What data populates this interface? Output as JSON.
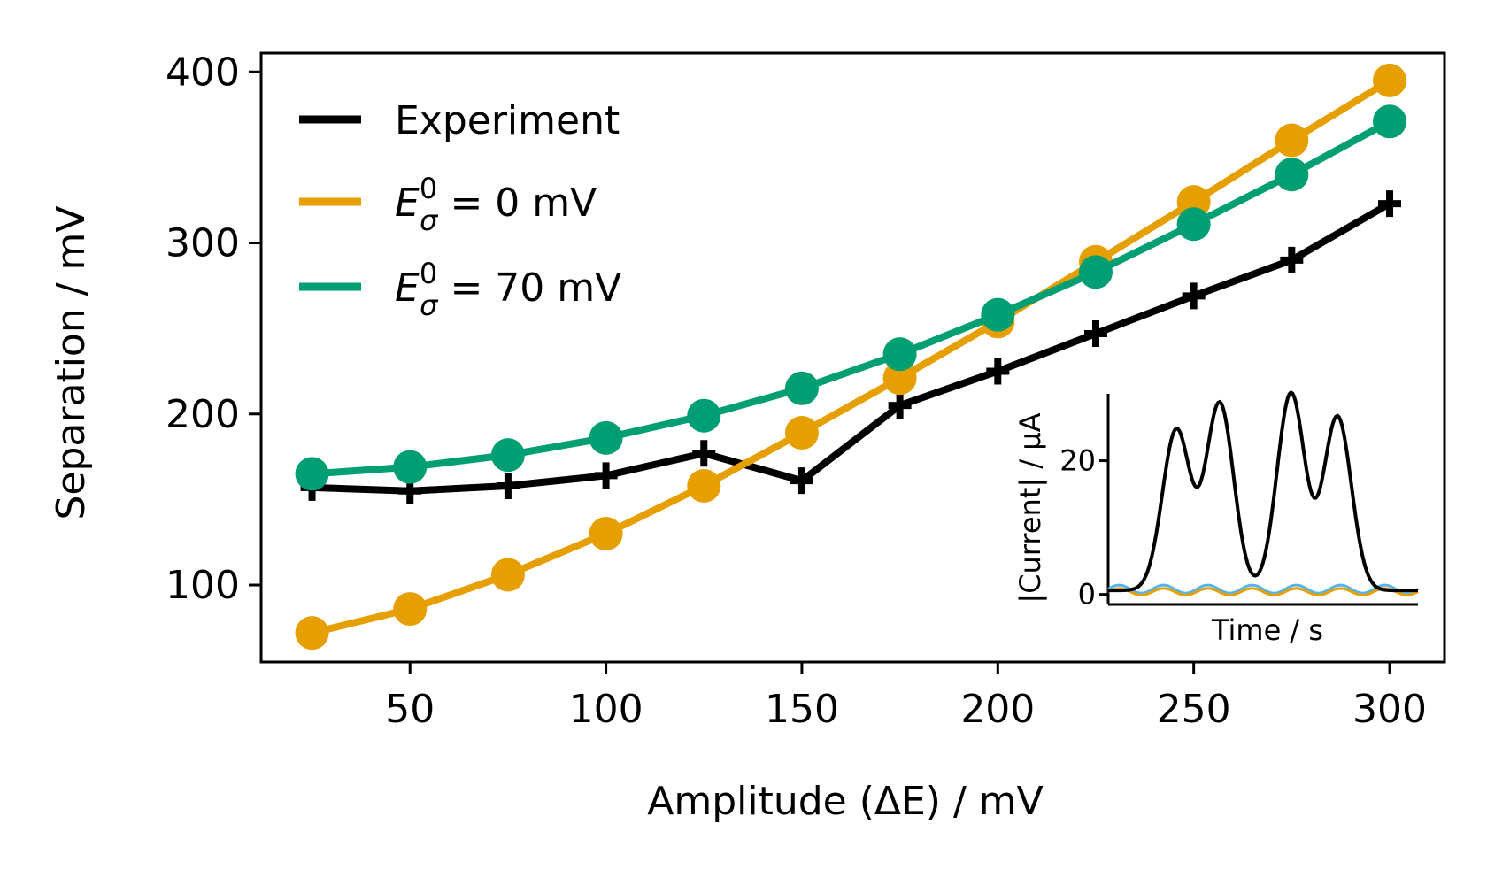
{
  "chart_data": {
    "type": "line",
    "xlabel": "Amplitude (ΔE) / mV",
    "ylabel": "Separation / mV",
    "xlim": [
      12,
      314
    ],
    "ylim": [
      55,
      411
    ],
    "xticks": [
      50,
      100,
      150,
      200,
      250,
      300
    ],
    "yticks": [
      100,
      200,
      300,
      400
    ],
    "x": [
      25,
      50,
      75,
      100,
      125,
      150,
      175,
      200,
      225,
      250,
      275,
      300
    ],
    "series": [
      {
        "name": "Experiment",
        "color": "#000000",
        "marker": "plus",
        "values": [
          157,
          155,
          158,
          164,
          177,
          161,
          205,
          225,
          247,
          269,
          290,
          323
        ]
      },
      {
        "name": "E_σ^0 = 0 mV",
        "legend_main": "E",
        "legend_sup": "0",
        "legend_sub": "σ",
        "legend_rest": " = 0 mV",
        "color": "#E69F00",
        "marker": "circle",
        "values": [
          72,
          86,
          106,
          130,
          158,
          189,
          221,
          254,
          289,
          324,
          360,
          395
        ]
      },
      {
        "name": "E_σ^0 = 70 mV",
        "legend_main": "E",
        "legend_sup": "0",
        "legend_sub": "σ",
        "legend_rest": " = 70 mV",
        "color": "#009E73",
        "marker": "circle",
        "values": [
          165,
          169,
          176,
          186,
          199,
          215,
          235,
          258,
          283,
          311,
          340,
          371
        ]
      }
    ],
    "legend_position": "upper-left",
    "inset": {
      "xlabel": "Time / s",
      "ylabel": "|Current| / μA",
      "yticks": [
        0,
        20
      ],
      "ylim": [
        -1.5,
        30
      ],
      "xlim": [
        0,
        1
      ],
      "series": [
        {
          "color": "#000000",
          "peaks": [
            {
              "center": 0.22,
              "height": 24
            },
            {
              "center": 0.36,
              "height": 28
            },
            {
              "center": 0.59,
              "height": 29.5
            },
            {
              "center": 0.74,
              "height": 26
            }
          ],
          "baseline": 0.6
        },
        {
          "color": "#E69F00",
          "baseline": 0.4,
          "ripple": 0.5
        },
        {
          "color": "#56B4E9",
          "baseline": 0.8,
          "ripple": 0.6
        }
      ]
    }
  }
}
